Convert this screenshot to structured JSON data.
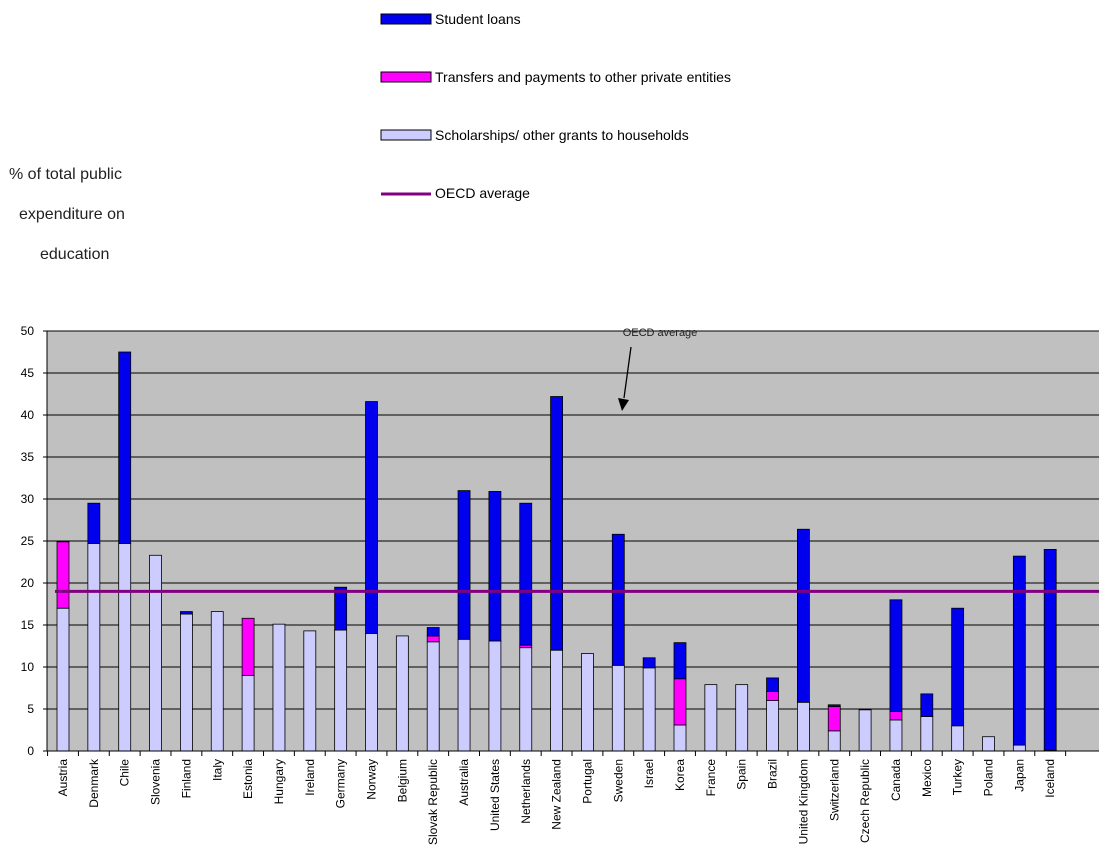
{
  "chart_data": {
    "type": "bar",
    "stacked": true,
    "ylabel": "% of total public expenditure on education",
    "ylabel_lines": [
      "% of total public",
      "expenditure on",
      "education"
    ],
    "ylim": [
      0,
      50
    ],
    "yticks": [
      0,
      5,
      10,
      15,
      20,
      25,
      30,
      35,
      40,
      45,
      50
    ],
    "grid": true,
    "legend_position": "top",
    "reference_line": {
      "name": "OECD average",
      "value": 19,
      "color": "#800080"
    },
    "annotation": "OECD average",
    "categories": [
      "Austria",
      "Denmark",
      "Chile",
      "Slovenia",
      "Finland",
      "Italy",
      "Estonia",
      "Hungary",
      "Ireland",
      "Germany",
      "Norway",
      "Belgium",
      "Slovak Republic",
      "Australia",
      "United States",
      "Netherlands",
      "New Zealand",
      "Portugal",
      "Sweden",
      "Israel",
      "Korea",
      "France",
      "Spain",
      "Brazil",
      "United Kingdom",
      "Switzerland",
      "Czech Republic",
      "Canada",
      "Mexico",
      "Turkey",
      "Poland",
      "Japan",
      "Iceland"
    ],
    "series": [
      {
        "name": "Scholarships/ other grants to households",
        "color": "#ccccff",
        "values": [
          17,
          24.7,
          24.7,
          23.3,
          16.3,
          16.6,
          9,
          15.1,
          14.3,
          14.4,
          14,
          13.7,
          13,
          13.3,
          13.1,
          12.3,
          12,
          11.6,
          10.2,
          9.9,
          3.1,
          7.9,
          7.9,
          6,
          5.8,
          2.4,
          4.9,
          3.7,
          4.1,
          3,
          1.7,
          0.7,
          0.1
        ]
      },
      {
        "name": "Transfers and payments to other private entities",
        "color": "#ff00ff",
        "values": [
          7.9,
          0,
          0,
          0,
          0,
          0,
          6.8,
          0,
          0,
          0,
          0,
          0,
          0.7,
          0,
          0,
          0.3,
          0,
          0,
          0,
          0,
          5.5,
          0,
          0,
          1.1,
          0,
          2.9,
          0,
          1,
          0,
          0,
          0,
          0,
          0
        ]
      },
      {
        "name": "Student loans",
        "color": "#0000ee",
        "values": [
          0,
          4.8,
          22.8,
          0,
          0.3,
          0,
          0,
          0,
          0,
          5.1,
          27.6,
          0,
          1,
          17.7,
          17.8,
          16.9,
          30.2,
          0,
          15.6,
          1.2,
          4.3,
          0,
          0,
          1.6,
          20.6,
          0.2,
          0,
          13.3,
          2.7,
          14,
          0,
          22.5,
          23.9
        ]
      }
    ]
  }
}
